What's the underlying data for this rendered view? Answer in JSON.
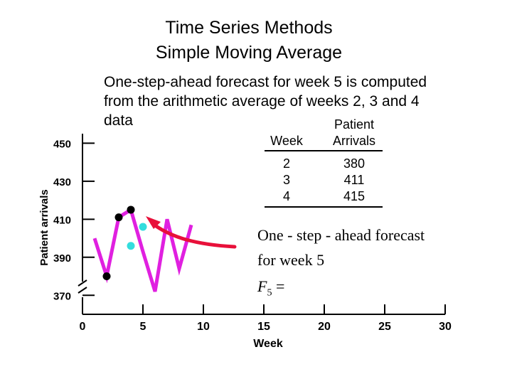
{
  "title": {
    "line1": "Time Series Methods",
    "line2": "Simple Moving Average"
  },
  "description": {
    "line1": "One-step-ahead forecast for week 5 is computed",
    "line2": "from the arithmetic average of weeks 2, 3 and 4",
    "line3": "data"
  },
  "table": {
    "header_week": "Week",
    "header_arrivals_1": "Patient",
    "header_arrivals_2": "Arrivals",
    "rows": [
      {
        "week": "2",
        "arrivals": "380"
      },
      {
        "week": "3",
        "arrivals": "411"
      },
      {
        "week": "4",
        "arrivals": "415"
      }
    ]
  },
  "formula": {
    "line1": "One - step - ahead forecast",
    "line2": "for week 5",
    "var": "F",
    "sub": "5",
    "eq": " ="
  },
  "chart_data": {
    "type": "line",
    "title": "Time Series Methods / Simple Moving Average",
    "xlabel": "Week",
    "ylabel": "Patient arrivals",
    "xlim": [
      0,
      30
    ],
    "ylim": [
      360,
      455
    ],
    "axis_break": true,
    "x_ticks": [
      0,
      5,
      10,
      15,
      20,
      25,
      30
    ],
    "y_ticks": [
      370,
      390,
      410,
      430,
      450
    ],
    "line_color": "#e020e0",
    "series": [
      {
        "name": "Patient arrivals",
        "x": [
          1,
          2,
          3,
          4,
          5,
          6,
          7,
          8,
          9
        ],
        "y": [
          400,
          380,
          411,
          415,
          393,
          372,
          410,
          384,
          407
        ]
      }
    ],
    "highlight_points": [
      {
        "x": 2,
        "y": 380,
        "color": "#000000"
      },
      {
        "x": 3,
        "y": 411,
        "color": "#000000"
      },
      {
        "x": 4,
        "y": 415,
        "color": "#000000"
      }
    ],
    "forecast_points": [
      {
        "x": 4,
        "y": 396,
        "color": "#33dddd"
      },
      {
        "x": 5,
        "y": 406,
        "color": "#33dddd"
      }
    ],
    "arrow_color": "#e8103a"
  }
}
